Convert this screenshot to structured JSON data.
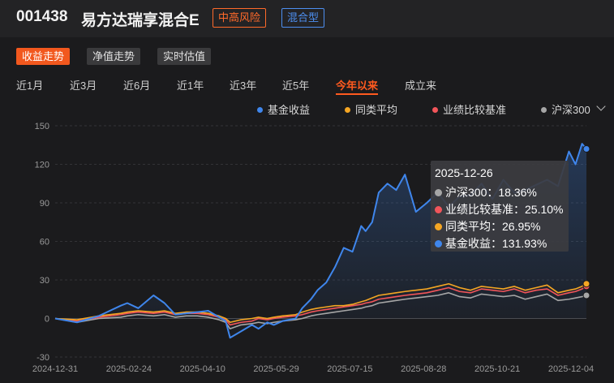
{
  "header": {
    "code": "001438",
    "name": "易方达瑞享混合E",
    "risk_badge": "中高风险",
    "type_badge": "混合型"
  },
  "mode_tabs": [
    "收益走势",
    "净值走势",
    "实时估值"
  ],
  "range_tabs": [
    "近1月",
    "近3月",
    "近6月",
    "近1年",
    "近3年",
    "近5年",
    "今年以来",
    "成立来"
  ],
  "active_range": "今年以来",
  "legend": [
    {
      "label": "基金收益",
      "color": "#3f86ec"
    },
    {
      "label": "同类平均",
      "color": "#f5a623"
    },
    {
      "label": "业绩比较基准",
      "color": "#f2555a"
    },
    {
      "label": "沪深300",
      "color": "#a6a6a6"
    }
  ],
  "tooltip": {
    "date": "2025-12-26",
    "rows": [
      {
        "label": "沪深300：18.36%",
        "color": "#a6a6a6"
      },
      {
        "label": "业绩比较基准：25.10%",
        "color": "#f2555a"
      },
      {
        "label": "同类平均：26.95%",
        "color": "#f5a623"
      },
      {
        "label": "基金收益：131.93%",
        "color": "#3f86ec"
      }
    ]
  },
  "chart_data": {
    "type": "line",
    "x_ticks": [
      "2024-12-31",
      "2025-02-24",
      "2025-04-10",
      "2025-05-29",
      "2025-07-15",
      "2025-08-28",
      "2025-10-21",
      "2025-12-04"
    ],
    "y_ticks": [
      150,
      120,
      90,
      60,
      30,
      0,
      -30
    ],
    "ylim": [
      -30,
      150
    ],
    "grid": true,
    "x_index": [
      0,
      10,
      20,
      30,
      33,
      38,
      45,
      50,
      55,
      60,
      65,
      70,
      75,
      78,
      80,
      85,
      90,
      93,
      97,
      100,
      104,
      110,
      113,
      117,
      120,
      124,
      128,
      132,
      136,
      140,
      142,
      145,
      148,
      152,
      156,
      160,
      165,
      170,
      175,
      180,
      185,
      190,
      195,
      200,
      205,
      210,
      215,
      220,
      225,
      230,
      235,
      238,
      241,
      243
    ],
    "series": [
      {
        "name": "基金收益",
        "color": "#3f86ec",
        "values": [
          0,
          -3,
          2,
          10,
          12,
          8,
          18,
          12,
          3,
          4,
          5,
          6,
          1,
          -2,
          -15,
          -10,
          -5,
          -8,
          -3,
          -5,
          -2,
          0,
          8,
          15,
          22,
          28,
          40,
          55,
          52,
          72,
          68,
          75,
          98,
          105,
          100,
          112,
          83,
          90,
          98,
          87,
          95,
          96,
          105,
          93,
          108,
          98,
          100,
          104,
          108,
          103,
          130,
          120,
          136,
          132
        ]
      },
      {
        "name": "同类平均",
        "color": "#f5a623",
        "values": [
          0,
          -1,
          2,
          4,
          5,
          6,
          5,
          6,
          4,
          5,
          5,
          4,
          2,
          0,
          -3,
          -1,
          0,
          1,
          0,
          1,
          2,
          3,
          5,
          7,
          8,
          9,
          10,
          10,
          11,
          13,
          14,
          16,
          18,
          19,
          20,
          21,
          22,
          23,
          25,
          27,
          24,
          22,
          25,
          24,
          23,
          25,
          22,
          24,
          26,
          20,
          22,
          23,
          25,
          27
        ]
      },
      {
        "name": "业绩比较基准",
        "color": "#f2555a",
        "values": [
          0,
          -2,
          1,
          3,
          4,
          5,
          4,
          5,
          3,
          4,
          4,
          3,
          1,
          -1,
          -5,
          -3,
          -2,
          0,
          -1,
          0,
          1,
          2,
          3,
          5,
          6,
          7,
          8,
          9,
          10,
          11,
          12,
          13,
          15,
          16,
          17,
          18,
          19,
          20,
          22,
          24,
          21,
          20,
          23,
          22,
          21,
          23,
          20,
          22,
          23,
          18,
          20,
          21,
          23,
          25
        ]
      },
      {
        "name": "沪深300",
        "color": "#a6a6a6",
        "values": [
          0,
          -3,
          0,
          1,
          2,
          3,
          2,
          3,
          1,
          2,
          2,
          1,
          -1,
          -3,
          -8,
          -5,
          -4,
          -3,
          -4,
          -3,
          -2,
          -1,
          0,
          2,
          3,
          4,
          5,
          6,
          7,
          8,
          9,
          10,
          12,
          13,
          14,
          15,
          16,
          17,
          18,
          20,
          17,
          16,
          19,
          18,
          17,
          18,
          15,
          17,
          19,
          14,
          15,
          16,
          17,
          18
        ]
      }
    ]
  }
}
